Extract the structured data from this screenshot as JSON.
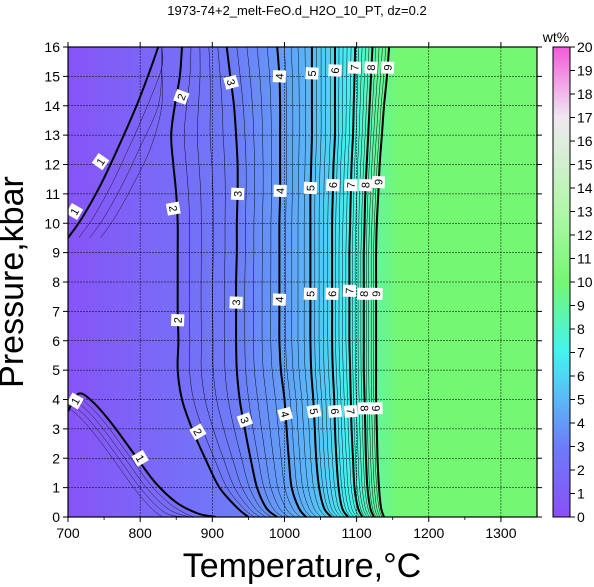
{
  "chart_data": {
    "type": "heatmap",
    "title": "1973-74+2_melt-FeO.d_H2O_10_PT, dz=0.2",
    "xlabel": "Temperature,°C",
    "ylabel": "Pressure,kbar",
    "xlim": [
      700,
      1350
    ],
    "ylim": [
      0,
      16
    ],
    "x_ticks": [
      700,
      800,
      900,
      1000,
      1100,
      1200,
      1300
    ],
    "y_ticks": [
      0,
      1,
      2,
      3,
      4,
      5,
      6,
      7,
      8,
      9,
      10,
      11,
      12,
      13,
      14,
      15,
      16
    ],
    "grid": true,
    "colorbar": {
      "label": "wt%",
      "range": [
        0,
        20
      ],
      "ticks": [
        0,
        1,
        2,
        3,
        4,
        5,
        6,
        7,
        8,
        9,
        10,
        11,
        12,
        13,
        14,
        15,
        16,
        17,
        18,
        19,
        20
      ],
      "placement": "right",
      "stops": [
        {
          "value": 0,
          "color": "#8a4ff7"
        },
        {
          "value": 3,
          "color": "#6d7cf7"
        },
        {
          "value": 5,
          "color": "#5ab8f7"
        },
        {
          "value": 7,
          "color": "#44f2f0"
        },
        {
          "value": 10,
          "color": "#74f772"
        },
        {
          "value": 13,
          "color": "#b0f7a8"
        },
        {
          "value": 17,
          "color": "#f0e8f2"
        },
        {
          "value": 20,
          "color": "#f35ad8"
        }
      ]
    },
    "plateau_color": "#74f772",
    "major_contours": [
      {
        "level": 1,
        "points": [
          [
            700,
            9.5
          ],
          [
            720,
            10.2
          ],
          [
            745,
            11.3
          ],
          [
            770,
            12.6
          ],
          [
            795,
            14.0
          ],
          [
            815,
            15.3
          ],
          [
            825,
            16.0
          ]
        ]
      },
      {
        "level": 1,
        "points": [
          [
            700,
            3.6
          ],
          [
            715,
            4.2
          ],
          [
            735,
            3.9
          ],
          [
            760,
            3.2
          ],
          [
            790,
            2.2
          ],
          [
            820,
            1.2
          ],
          [
            850,
            0.5
          ],
          [
            880,
            0.12
          ],
          [
            905,
            0.0
          ]
        ]
      },
      {
        "level": 2,
        "points": [
          [
            858,
            16
          ],
          [
            855,
            15.0
          ],
          [
            848,
            14.0
          ],
          [
            843,
            13.0
          ],
          [
            846,
            12.0
          ],
          [
            850,
            11.0
          ],
          [
            852,
            10.0
          ],
          [
            852,
            9.0
          ],
          [
            852,
            8.0
          ],
          [
            852,
            7.0
          ],
          [
            853,
            6.0
          ],
          [
            852,
            5.0
          ],
          [
            858,
            4.0
          ],
          [
            872,
            3.0
          ],
          [
            890,
            2.0
          ],
          [
            910,
            1.0
          ],
          [
            935,
            0.3
          ],
          [
            950,
            0.0
          ]
        ]
      },
      {
        "level": 3,
        "points": [
          [
            920,
            16
          ],
          [
            925,
            15.0
          ],
          [
            930,
            14.0
          ],
          [
            933,
            13.0
          ],
          [
            935,
            12.0
          ],
          [
            935,
            11.0
          ],
          [
            934,
            10.0
          ],
          [
            934,
            9.0
          ],
          [
            933,
            8.0
          ],
          [
            933,
            7.0
          ],
          [
            933,
            6.0
          ],
          [
            934,
            5.0
          ],
          [
            938,
            4.0
          ],
          [
            945,
            3.0
          ],
          [
            953,
            2.0
          ],
          [
            962,
            1.0
          ],
          [
            975,
            0.3
          ],
          [
            990,
            0.0
          ]
        ]
      },
      {
        "level": 4,
        "points": [
          [
            990,
            16
          ],
          [
            993,
            15.0
          ],
          [
            994,
            14.0
          ],
          [
            994,
            13.0
          ],
          [
            994,
            12.0
          ],
          [
            994,
            11.0
          ],
          [
            993,
            10.0
          ],
          [
            993,
            9.0
          ],
          [
            993,
            8.0
          ],
          [
            993,
            7.0
          ],
          [
            993,
            6.0
          ],
          [
            995,
            5.0
          ],
          [
            1000,
            4.0
          ],
          [
            1003,
            3.0
          ],
          [
            1006,
            2.0
          ],
          [
            1010,
            1.0
          ],
          [
            1020,
            0.3
          ],
          [
            1030,
            0.0
          ]
        ]
      },
      {
        "level": 5,
        "points": [
          [
            1038,
            16
          ],
          [
            1038,
            15.0
          ],
          [
            1038,
            14.0
          ],
          [
            1038,
            13.0
          ],
          [
            1037,
            12.0
          ],
          [
            1036,
            11.0
          ],
          [
            1036,
            10.0
          ],
          [
            1036,
            9.0
          ],
          [
            1036,
            8.0
          ],
          [
            1036,
            7.0
          ],
          [
            1036,
            6.0
          ],
          [
            1037,
            5.0
          ],
          [
            1040,
            4.0
          ],
          [
            1042,
            3.0
          ],
          [
            1044,
            2.0
          ],
          [
            1048,
            1.0
          ],
          [
            1055,
            0.3
          ],
          [
            1065,
            0.0
          ]
        ]
      },
      {
        "level": 6,
        "points": [
          [
            1070,
            16
          ],
          [
            1070,
            15.0
          ],
          [
            1070,
            14.0
          ],
          [
            1070,
            13.0
          ],
          [
            1068,
            12.0
          ],
          [
            1067,
            11.0
          ],
          [
            1066,
            10.0
          ],
          [
            1066,
            9.0
          ],
          [
            1066,
            8.0
          ],
          [
            1066,
            7.0
          ],
          [
            1066,
            6.0
          ],
          [
            1067,
            5.0
          ],
          [
            1069,
            4.0
          ],
          [
            1070,
            3.0
          ],
          [
            1072,
            2.0
          ],
          [
            1075,
            1.0
          ],
          [
            1080,
            0.3
          ],
          [
            1088,
            0.0
          ]
        ]
      },
      {
        "level": 7,
        "points": [
          [
            1098,
            16
          ],
          [
            1097,
            15.0
          ],
          [
            1096,
            14.0
          ],
          [
            1095,
            13.0
          ],
          [
            1093,
            12.0
          ],
          [
            1092,
            11.0
          ],
          [
            1091,
            10.0
          ],
          [
            1090,
            9.0
          ],
          [
            1090,
            8.0
          ],
          [
            1090,
            7.0
          ],
          [
            1090,
            6.0
          ],
          [
            1091,
            5.0
          ],
          [
            1092,
            4.0
          ],
          [
            1093,
            3.0
          ],
          [
            1095,
            2.0
          ],
          [
            1097,
            1.0
          ],
          [
            1102,
            0.3
          ],
          [
            1108,
            0.0
          ]
        ]
      },
      {
        "level": 8,
        "points": [
          [
            1122,
            16
          ],
          [
            1120,
            15.0
          ],
          [
            1118,
            14.0
          ],
          [
            1116,
            13.0
          ],
          [
            1114,
            12.0
          ],
          [
            1112,
            11.0
          ],
          [
            1111,
            10.0
          ],
          [
            1110,
            9.0
          ],
          [
            1110,
            8.0
          ],
          [
            1110,
            7.0
          ],
          [
            1110,
            6.0
          ],
          [
            1110,
            5.0
          ],
          [
            1111,
            4.0
          ],
          [
            1112,
            3.0
          ],
          [
            1113,
            2.0
          ],
          [
            1115,
            1.0
          ],
          [
            1119,
            0.3
          ],
          [
            1124,
            0.0
          ]
        ]
      },
      {
        "level": 9,
        "points": [
          [
            1145,
            16
          ],
          [
            1142,
            15.0
          ],
          [
            1138,
            14.0
          ],
          [
            1135,
            13.0
          ],
          [
            1132,
            12.0
          ],
          [
            1130,
            11.0
          ],
          [
            1128,
            10.0
          ],
          [
            1127,
            9.0
          ],
          [
            1127,
            8.0
          ],
          [
            1127,
            7.0
          ],
          [
            1127,
            6.0
          ],
          [
            1127,
            5.0
          ],
          [
            1127,
            4.0
          ],
          [
            1128,
            3.0
          ],
          [
            1129,
            2.0
          ],
          [
            1131,
            1.0
          ],
          [
            1134,
            0.3
          ],
          [
            1138,
            0.0
          ]
        ]
      }
    ],
    "contour_labels": [
      {
        "text": "1",
        "x": 745,
        "y": 12.1,
        "angle": -55
      },
      {
        "text": "1",
        "x": 709,
        "y": 10.4,
        "angle": -60
      },
      {
        "text": "1",
        "x": 710,
        "y": 3.95,
        "angle": -60
      },
      {
        "text": "1",
        "x": 800,
        "y": 2.0,
        "angle": 60
      },
      {
        "text": "2",
        "x": 857,
        "y": 14.3,
        "angle": -70
      },
      {
        "text": "2",
        "x": 846,
        "y": 10.5,
        "angle": 80
      },
      {
        "text": "2",
        "x": 852,
        "y": 6.7,
        "angle": -88
      },
      {
        "text": "2",
        "x": 880,
        "y": 2.9,
        "angle": 60
      },
      {
        "text": "3",
        "x": 926,
        "y": 14.8,
        "angle": 75
      },
      {
        "text": "3",
        "x": 935,
        "y": 11.0,
        "angle": -88
      },
      {
        "text": "3",
        "x": 933,
        "y": 7.3,
        "angle": -88
      },
      {
        "text": "3",
        "x": 945,
        "y": 3.3,
        "angle": 70
      },
      {
        "text": "4",
        "x": 993,
        "y": 15.0,
        "angle": -88
      },
      {
        "text": "4",
        "x": 994,
        "y": 11.1,
        "angle": -88
      },
      {
        "text": "4",
        "x": 993,
        "y": 7.4,
        "angle": -88
      },
      {
        "text": "4",
        "x": 1001,
        "y": 3.5,
        "angle": 75
      },
      {
        "text": "5",
        "x": 1038,
        "y": 15.1,
        "angle": -88
      },
      {
        "text": "5",
        "x": 1036,
        "y": 11.2,
        "angle": -88
      },
      {
        "text": "5",
        "x": 1036,
        "y": 7.6,
        "angle": -88
      },
      {
        "text": "5",
        "x": 1041,
        "y": 3.6,
        "angle": 80
      },
      {
        "text": "6",
        "x": 1070,
        "y": 15.2,
        "angle": -88
      },
      {
        "text": "6",
        "x": 1067,
        "y": 11.3,
        "angle": -88
      },
      {
        "text": "6",
        "x": 1066,
        "y": 7.6,
        "angle": -88
      },
      {
        "text": "6",
        "x": 1070,
        "y": 3.6,
        "angle": 85
      },
      {
        "text": "7",
        "x": 1097,
        "y": 15.3,
        "angle": -88
      },
      {
        "text": "7",
        "x": 1092,
        "y": 11.3,
        "angle": -88
      },
      {
        "text": "7",
        "x": 1090,
        "y": 7.7,
        "angle": -88
      },
      {
        "text": "7",
        "x": 1092,
        "y": 3.6,
        "angle": 85
      },
      {
        "text": "8",
        "x": 1120,
        "y": 15.3,
        "angle": -88
      },
      {
        "text": "8",
        "x": 1112,
        "y": 11.3,
        "angle": -88
      },
      {
        "text": "8",
        "x": 1110,
        "y": 7.6,
        "angle": -88
      },
      {
        "text": "8",
        "x": 1111,
        "y": 3.7,
        "angle": 88
      },
      {
        "text": "9",
        "x": 1143,
        "y": 15.3,
        "angle": -88
      },
      {
        "text": "9",
        "x": 1130,
        "y": 11.4,
        "angle": -88
      },
      {
        "text": "9",
        "x": 1127,
        "y": 7.6,
        "angle": -88
      },
      {
        "text": "9",
        "x": 1127,
        "y": 3.7,
        "angle": 88
      }
    ]
  }
}
